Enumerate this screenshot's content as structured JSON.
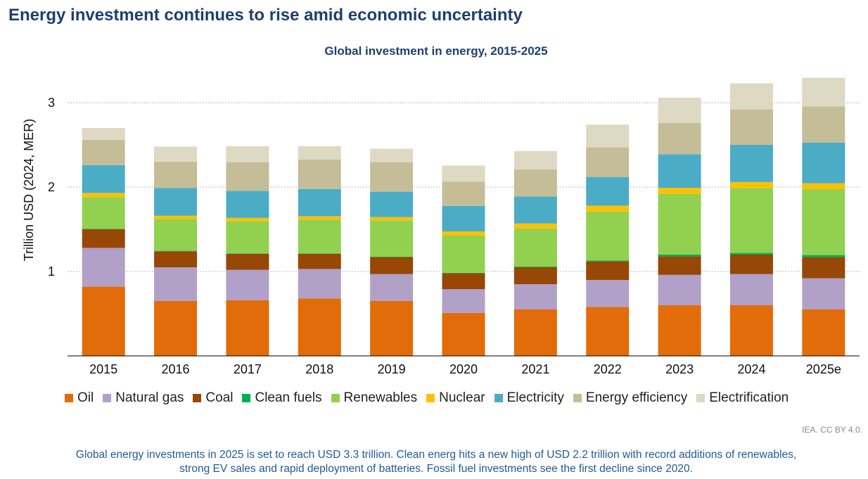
{
  "headline": "Energy investment continues to rise amid economic uncertainty",
  "source_note": "IEA. CC BY 4.0.",
  "caption": {
    "line1": "Global energy investments in 2025 is set to reach USD 3.3 trillion. Clean energ hits a new high of USD 2.2 trillion with record additions of renewables,",
    "line2": "strong EV sales and rapid deployment of batteries. Fossil fuel investments see the first decline since 2020."
  },
  "chart_data": {
    "type": "bar",
    "stacked": true,
    "title": "Global investment in energy, 2015-2025",
    "xlabel": "",
    "ylabel": "Trillion USD (2024, MER)",
    "ylim": [
      0,
      3.3
    ],
    "yticks": [
      1,
      2,
      3
    ],
    "grid": true,
    "legend_position": "bottom",
    "categories": [
      "2015",
      "2016",
      "2017",
      "2018",
      "2019",
      "2020",
      "2021",
      "2022",
      "2023",
      "2024",
      "2025e"
    ],
    "series": [
      {
        "name": "Oil",
        "color": "#e36c0a",
        "values": [
          0.82,
          0.65,
          0.66,
          0.68,
          0.65,
          0.51,
          0.55,
          0.58,
          0.6,
          0.6,
          0.55
        ]
      },
      {
        "name": "Natural gas",
        "color": "#b1a0c7",
        "values": [
          0.46,
          0.4,
          0.36,
          0.35,
          0.32,
          0.28,
          0.3,
          0.32,
          0.36,
          0.37,
          0.37
        ]
      },
      {
        "name": "Coal",
        "color": "#974706",
        "values": [
          0.22,
          0.19,
          0.19,
          0.18,
          0.2,
          0.19,
          0.2,
          0.22,
          0.22,
          0.23,
          0.25
        ]
      },
      {
        "name": "Clean fuels",
        "color": "#00b050",
        "values": [
          0.005,
          0.005,
          0.005,
          0.005,
          0.005,
          0.005,
          0.008,
          0.01,
          0.02,
          0.02,
          0.025
        ]
      },
      {
        "name": "Renewables",
        "color": "#92d050",
        "values": [
          0.375,
          0.375,
          0.38,
          0.4,
          0.43,
          0.44,
          0.45,
          0.58,
          0.72,
          0.77,
          0.78
        ]
      },
      {
        "name": "Nuclear",
        "color": "#ffc000",
        "values": [
          0.05,
          0.04,
          0.04,
          0.04,
          0.04,
          0.05,
          0.06,
          0.07,
          0.07,
          0.07,
          0.07
        ]
      },
      {
        "name": "Electricity",
        "color": "#4bacc6",
        "values": [
          0.33,
          0.33,
          0.32,
          0.32,
          0.3,
          0.3,
          0.32,
          0.34,
          0.4,
          0.44,
          0.48
        ]
      },
      {
        "name": "Energy efficiency",
        "color": "#c4bd97",
        "values": [
          0.3,
          0.31,
          0.34,
          0.35,
          0.35,
          0.29,
          0.32,
          0.35,
          0.37,
          0.42,
          0.43
        ]
      },
      {
        "name": "Electrification",
        "color": "#ddd9c3",
        "values": [
          0.14,
          0.18,
          0.19,
          0.16,
          0.16,
          0.19,
          0.22,
          0.27,
          0.3,
          0.31,
          0.34
        ]
      }
    ]
  }
}
